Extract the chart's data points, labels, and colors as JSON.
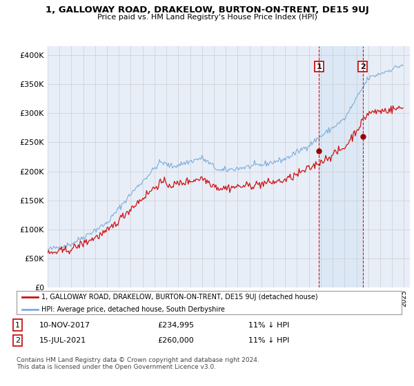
{
  "title": "1, GALLOWAY ROAD, DRAKELOW, BURTON-ON-TRENT, DE15 9UJ",
  "subtitle": "Price paid vs. HM Land Registry's House Price Index (HPI)",
  "ytick_values": [
    0,
    50000,
    100000,
    150000,
    200000,
    250000,
    300000,
    350000,
    400000
  ],
  "ylim": [
    0,
    415000
  ],
  "xlim_start": 1995.0,
  "xlim_end": 2025.5,
  "hpi_color": "#7aaddc",
  "price_color": "#cc1111",
  "bg_color": "#e8eef8",
  "shade_color": "#dce8f5",
  "grid_color": "#cccccc",
  "marker1_year": 2017.86,
  "marker1_price": 234995,
  "marker2_year": 2021.54,
  "marker2_price": 260000,
  "legend_line1": "1, GALLOWAY ROAD, DRAKELOW, BURTON-ON-TRENT, DE15 9UJ (detached house)",
  "legend_line2": "HPI: Average price, detached house, South Derbyshire",
  "footer": "Contains HM Land Registry data © Crown copyright and database right 2024.\nThis data is licensed under the Open Government Licence v3.0.",
  "table_row1": [
    "1",
    "10-NOV-2017",
    "£234,995",
    "11% ↓ HPI"
  ],
  "table_row2": [
    "2",
    "15-JUL-2021",
    "£260,000",
    "11% ↓ HPI"
  ]
}
